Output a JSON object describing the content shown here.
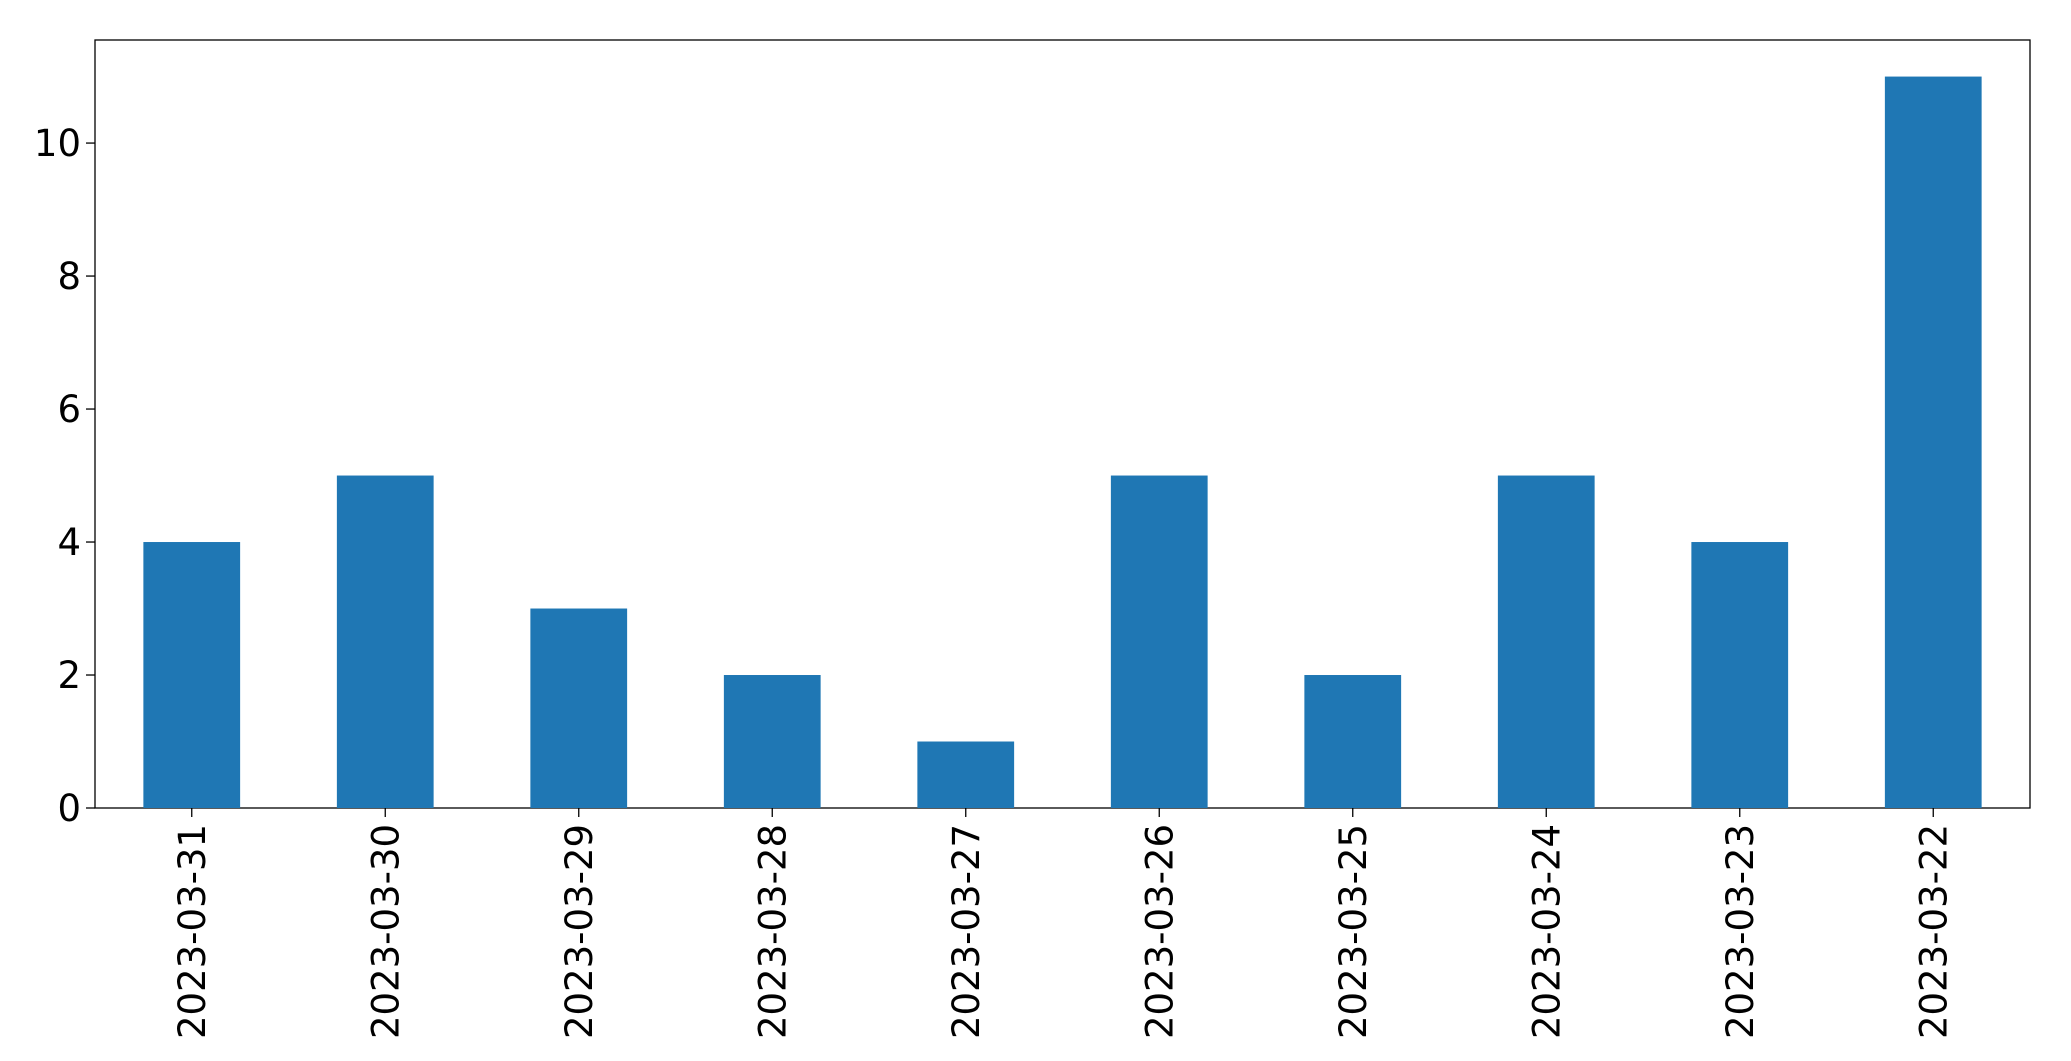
{
  "chart_data": {
    "type": "bar",
    "categories": [
      "2023-03-31",
      "2023-03-30",
      "2023-03-29",
      "2023-03-28",
      "2023-03-27",
      "2023-03-26",
      "2023-03-25",
      "2023-03-24",
      "2023-03-23",
      "2023-03-22"
    ],
    "values": [
      4,
      5,
      3,
      2,
      1,
      5,
      2,
      5,
      4,
      11
    ],
    "color": "#1f77b4",
    "ylim": [
      0,
      11.55
    ],
    "yticks": [
      0,
      2,
      4,
      6,
      8,
      10
    ],
    "grid": false
  }
}
